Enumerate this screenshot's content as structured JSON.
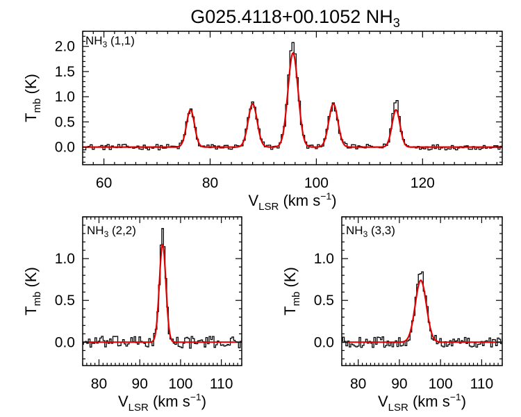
{
  "chart_data": {
    "title": "G025.4118+00.1052 NH",
    "title_sub": "3",
    "panels": [
      {
        "id": "nh3-11",
        "type": "line",
        "label": {
          "main": "NH",
          "sub": "3",
          "suffix": " (1,1)"
        },
        "xlim": [
          56,
          135
        ],
        "ylim": [
          -0.35,
          2.3
        ],
        "xticks": [
          60,
          80,
          100,
          120
        ],
        "yticks": [
          0.0,
          0.5,
          1.0,
          1.5,
          2.0
        ],
        "ytick_labels": [
          "0.0",
          "0.5",
          "1.0",
          "1.5",
          "2.0"
        ],
        "xlabel": {
          "main": "V",
          "sub": "LSR",
          "suffix": " (km s",
          "sup": "−1",
          "end": ")"
        },
        "ylabel": {
          "main": "T",
          "sub": "mb",
          "suffix": " (K)"
        },
        "fit_components": [
          {
            "center": 76.3,
            "amplitude": 0.74,
            "sigma": 0.75
          },
          {
            "center": 88.0,
            "amplitude": 0.86,
            "sigma": 0.85
          },
          {
            "center": 95.6,
            "amplitude": 1.87,
            "sigma": 0.95
          },
          {
            "center": 103.2,
            "amplitude": 0.86,
            "sigma": 0.85
          },
          {
            "center": 115.0,
            "amplitude": 0.74,
            "sigma": 0.75
          }
        ],
        "spectrum_noise": 0.035,
        "spectrum_step": 0.4,
        "spectrum_extra": [
          {
            "center": 95.6,
            "amplitude": 0.22,
            "sigma": 0.6
          },
          {
            "center": 115.0,
            "amplitude": 0.18,
            "sigma": 0.6
          }
        ]
      },
      {
        "id": "nh3-22",
        "type": "line",
        "label": {
          "main": "NH",
          "sub": "3",
          "suffix": " (2,2)"
        },
        "xlim": [
          76,
          115
        ],
        "ylim": [
          -0.28,
          1.5
        ],
        "xticks": [
          80,
          90,
          100,
          110
        ],
        "yticks": [
          0.0,
          0.5,
          1.0
        ],
        "ytick_labels": [
          "0.0",
          "0.5",
          "1.0"
        ],
        "xlabel": {
          "main": "V",
          "sub": "LSR",
          "suffix": " (km s",
          "sup": "−1",
          "end": ")"
        },
        "ylabel": {
          "main": "T",
          "sub": "mb",
          "suffix": " (K)"
        },
        "fit_components": [
          {
            "center": 95.6,
            "amplitude": 1.17,
            "sigma": 0.8
          }
        ],
        "spectrum_noise": 0.045,
        "spectrum_step": 0.4,
        "spectrum_extra": [
          {
            "center": 95.6,
            "amplitude": 0.14,
            "sigma": 0.35
          }
        ]
      },
      {
        "id": "nh3-33",
        "type": "line",
        "label": {
          "main": "NH",
          "sub": "3",
          "suffix": " (3,3)"
        },
        "xlim": [
          76,
          115
        ],
        "ylim": [
          -0.28,
          1.5
        ],
        "xticks": [
          80,
          90,
          100,
          110
        ],
        "yticks": [
          0.0,
          0.5,
          1.0
        ],
        "ytick_labels": [
          "0.0",
          "0.5",
          "1.0"
        ],
        "xlabel": {
          "main": "V",
          "sub": "LSR",
          "suffix": " (km s",
          "sup": "−1",
          "end": ")"
        },
        "ylabel": {
          "main": "T",
          "sub": "mb",
          "suffix": " (K)"
        },
        "fit_components": [
          {
            "center": 95.2,
            "amplitude": 0.74,
            "sigma": 1.35
          }
        ],
        "spectrum_noise": 0.04,
        "spectrum_step": 0.4,
        "spectrum_extra": [
          {
            "center": 95.2,
            "amplitude": 0.1,
            "sigma": 0.5
          }
        ]
      }
    ],
    "colors": {
      "spectrum": "#000000",
      "fit": "#e00000",
      "frame": "#000000"
    }
  }
}
